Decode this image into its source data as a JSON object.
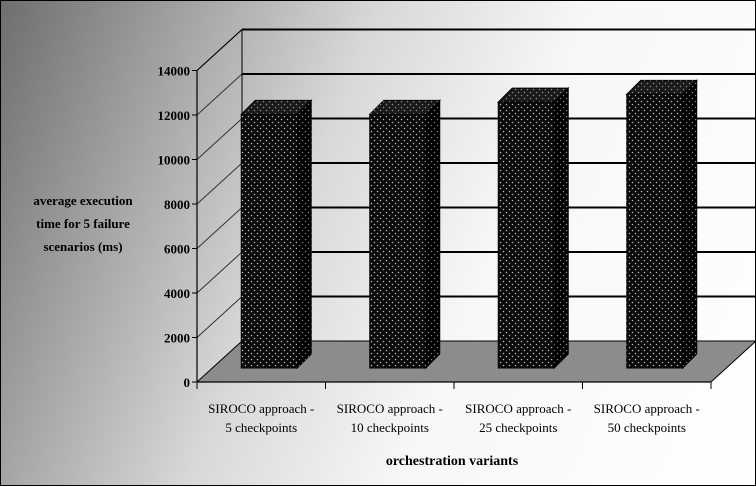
{
  "chart_data": {
    "type": "bar",
    "categories": [
      [
        "SIROCO approach -",
        "5 checkpoints"
      ],
      [
        "SIROCO approach -",
        "10 checkpoints"
      ],
      [
        "SIROCO approach -",
        "25 checkpoints"
      ],
      [
        "SIROCO approach -",
        "50 checkpoints"
      ]
    ],
    "values": [
      11400,
      11400,
      11950,
      12300
    ],
    "ylabel": [
      "average execution",
      "time for 5 failure",
      "scenarios (ms)"
    ],
    "xlabel": "orchestration variants",
    "ylim": [
      0,
      14000
    ],
    "yticks": [
      "0",
      "2000",
      "4000",
      "6000",
      "8000",
      "10000",
      "12000",
      "14000"
    ],
    "grid": true,
    "colors": {
      "bar_front": "#0a0a0a",
      "bar_top": "#1a1a1a",
      "floor": "#8c8c8c",
      "gridline": "#000000"
    }
  }
}
